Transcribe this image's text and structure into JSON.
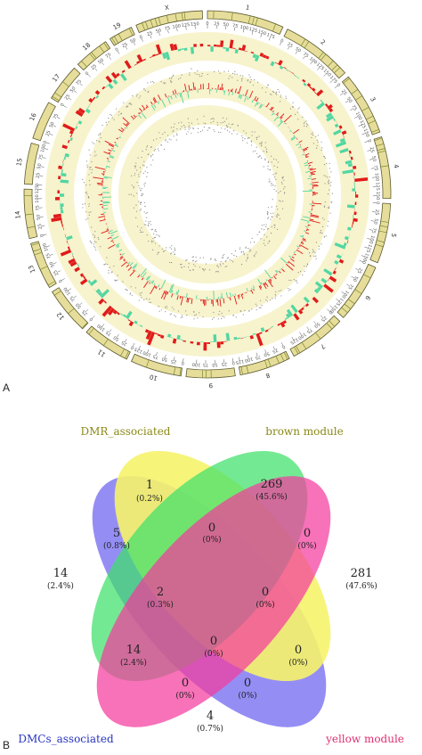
{
  "panel_a_label": "A",
  "panel_b_label": "B",
  "circos": {
    "chromosomes": [
      "1",
      "2",
      "3",
      "4",
      "5",
      "6",
      "7",
      "8",
      "9",
      "10",
      "11",
      "12",
      "13",
      "14",
      "15",
      "16",
      "17",
      "18",
      "19",
      "X"
    ],
    "axis_tick_labels": [
      "0",
      "25",
      "50",
      "75",
      "100",
      "125",
      "150",
      "175"
    ],
    "colors": {
      "ideogram_fill": "#e6dd9a",
      "ideogram_band": "#7a8a2a",
      "ideogram_stroke": "#5d5a30",
      "ring_bg": "#f7f3cc",
      "bar_up": "#e01b1b",
      "bar_down": "#52d6a2",
      "dot": "#8f8f8f"
    }
  },
  "venn": {
    "sets": {
      "dmr": {
        "label": "DMR_associated",
        "color": "#f6f36c",
        "label_color": "#8a8a18"
      },
      "brown": {
        "label": "brown module",
        "color": "#3fe06a",
        "label_color": "#8a8a18"
      },
      "yellow": {
        "label": "yellow module",
        "color": "#f43c9e",
        "label_color": "#e02f70"
      },
      "dmcs": {
        "label": "DMCs_associated",
        "color": "#6b63f0",
        "label_color": "#2533c0"
      }
    },
    "regions": {
      "dmr_only": {
        "n": "1",
        "p": "(0.2%)"
      },
      "brown_only": {
        "n": "269",
        "p": "(45.6%)"
      },
      "dmcs_only": {
        "n": "14",
        "p": "(2.4%)"
      },
      "yellow_only": {
        "n": "281",
        "p": "(47.6%)"
      },
      "dmr_dmcs": {
        "n": "5",
        "p": "(0.8%)"
      },
      "dmr_brown": {
        "n": "0",
        "p": "(0%)"
      },
      "brown_yellow": {
        "n": "0",
        "p": "(0%)"
      },
      "dmr_brown_dmcs": {
        "n": "2",
        "p": "(0.3%)"
      },
      "dmr_brown_yellow": {
        "n": "0",
        "p": "(0%)"
      },
      "brown_dmcs": {
        "n": "14",
        "p": "(2.4%)"
      },
      "all_four": {
        "n": "0",
        "p": "(0%)"
      },
      "dmr_yellow": {
        "n": "0",
        "p": "(0%)"
      },
      "dmr_dmcs_yellow": {
        "n": "0",
        "p": "(0%)"
      },
      "brown_dmcs_yellow": {
        "n": "0",
        "p": "(0%)"
      },
      "dmcs_yellow": {
        "n": "4",
        "p": "(0.7%)"
      }
    }
  }
}
